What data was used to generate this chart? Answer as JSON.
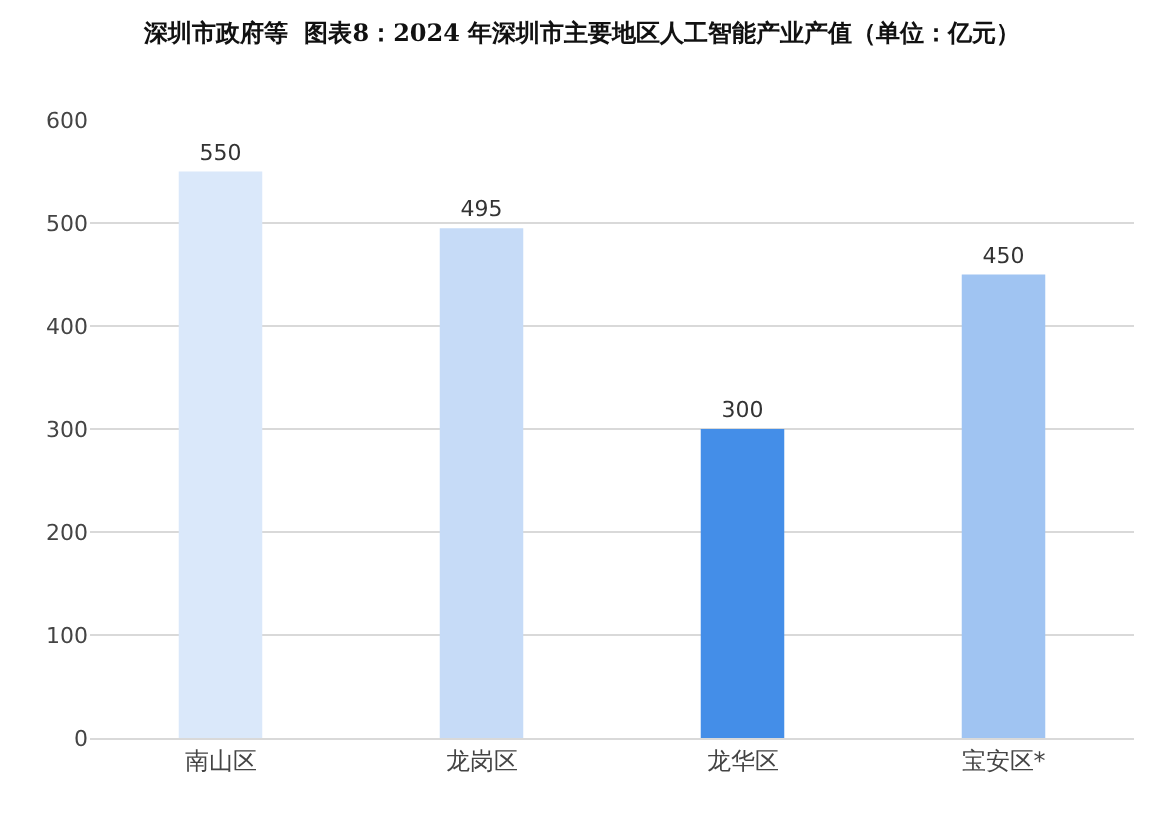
{
  "chart_data": {
    "type": "bar",
    "title": "深圳市政府等  图表8：2024 年深圳市主要地区人工智能产业产值（单位：亿元）",
    "categories": [
      "南山区",
      "龙岗区",
      "龙华区",
      "宝安区*"
    ],
    "values": [
      550,
      495,
      300,
      450
    ],
    "colors": [
      "#dae8fa",
      "#c6dbf7",
      "#448ee8",
      "#a0c4f2"
    ],
    "ylim": [
      0,
      600
    ],
    "yticks": [
      0,
      100,
      200,
      300,
      400,
      500,
      600
    ],
    "grid": "y",
    "data_labels": true
  }
}
